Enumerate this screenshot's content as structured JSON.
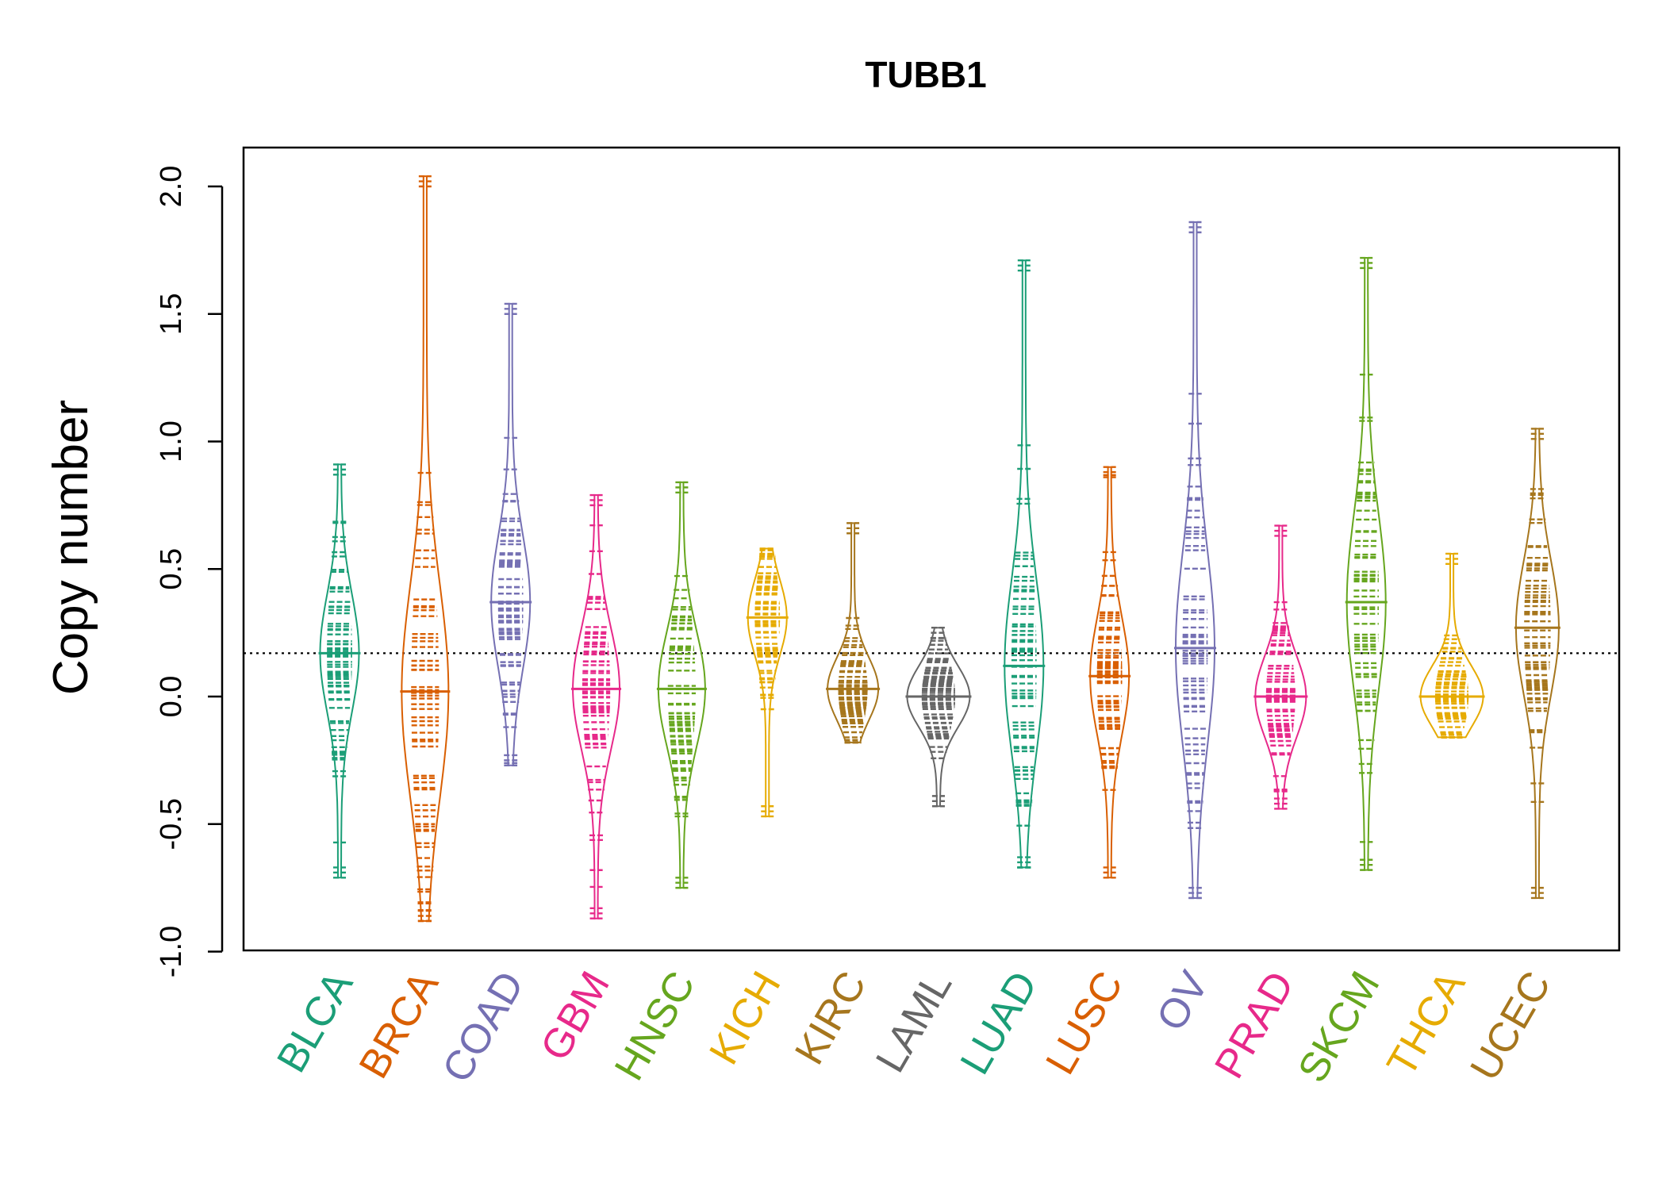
{
  "chart_data": {
    "type": "beanplot",
    "title": "TUBB1",
    "xlabel": "",
    "ylabel": "Copy number",
    "ylim": [
      -1.0,
      2.15
    ],
    "yticks": [
      "-1.0",
      "-0.5",
      "0.0",
      "0.5",
      "1.0",
      "1.5",
      "2.0"
    ],
    "overall_reference_line": 0.17,
    "categories": [
      "BLCA",
      "BRCA",
      "COAD",
      "GBM",
      "HNSC",
      "KICH",
      "KIRC",
      "LAML",
      "LUAD",
      "LUSC",
      "OV",
      "PRAD",
      "SKCM",
      "THCA",
      "UCEC"
    ],
    "colors": [
      "#1b9e77",
      "#d95f02",
      "#7570b3",
      "#e7298a",
      "#66a61e",
      "#e6ab02",
      "#a6761d",
      "#666666",
      "#1b9e77",
      "#d95f02",
      "#7570b3",
      "#e7298a",
      "#66a61e",
      "#e6ab02",
      "#a6761d"
    ],
    "series": [
      {
        "name": "BLCA",
        "min": -0.71,
        "max": 0.91,
        "mean": 0.17,
        "width": 0.45
      },
      {
        "name": "BRCA",
        "min": -0.88,
        "max": 2.04,
        "mean": 0.02,
        "width": 0.55
      },
      {
        "name": "COAD",
        "min": -0.27,
        "max": 1.54,
        "mean": 0.37,
        "width": 0.45
      },
      {
        "name": "GBM",
        "min": -0.87,
        "max": 0.79,
        "mean": 0.03,
        "width": 0.55
      },
      {
        "name": "HNSC",
        "min": -0.75,
        "max": 0.84,
        "mean": 0.03,
        "width": 0.55
      },
      {
        "name": "KICH",
        "min": -0.47,
        "max": 0.58,
        "mean": 0.31,
        "width": 0.45
      },
      {
        "name": "KIRC",
        "min": -0.18,
        "max": 0.68,
        "mean": 0.03,
        "width": 0.6
      },
      {
        "name": "LAML",
        "min": -0.43,
        "max": 0.27,
        "mean": 0.0,
        "width": 0.75
      },
      {
        "name": "LUAD",
        "min": -0.67,
        "max": 1.71,
        "mean": 0.12,
        "width": 0.45
      },
      {
        "name": "LUSC",
        "min": -0.71,
        "max": 0.9,
        "mean": 0.08,
        "width": 0.45
      },
      {
        "name": "OV",
        "min": -0.79,
        "max": 1.86,
        "mean": 0.19,
        "width": 0.45
      },
      {
        "name": "PRAD",
        "min": -0.44,
        "max": 0.67,
        "mean": 0.0,
        "width": 0.6
      },
      {
        "name": "SKCM",
        "min": -0.68,
        "max": 1.72,
        "mean": 0.37,
        "width": 0.45
      },
      {
        "name": "THCA",
        "min": -0.16,
        "max": 0.56,
        "mean": 0.0,
        "width": 0.75
      },
      {
        "name": "UCEC",
        "min": -0.79,
        "max": 1.05,
        "mean": 0.27,
        "width": 0.5
      }
    ]
  }
}
